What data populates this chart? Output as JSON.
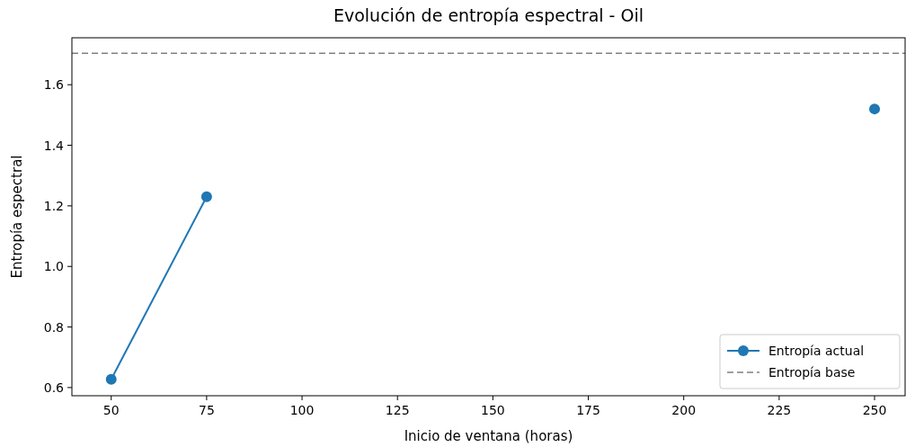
{
  "chart_data": {
    "type": "line",
    "title": "Evolución de entropía espectral - Oil",
    "xlabel": "Inicio de ventana (horas)",
    "ylabel": "Entropía espectral",
    "x": [
      50,
      75,
      100,
      125,
      150,
      175,
      200,
      225,
      250
    ],
    "series": [
      {
        "name": "Entropía actual",
        "color": "#1f77b4",
        "values": [
          0.627,
          1.23,
          null,
          null,
          null,
          null,
          null,
          null,
          1.52
        ]
      }
    ],
    "ref_lines": [
      {
        "axis": "y",
        "value": 1.704,
        "label": "Entropía base",
        "color": "#808080",
        "line_style": "dashed"
      }
    ],
    "xlim": [
      39.7,
      258
    ],
    "xticks": [
      50,
      75,
      100,
      125,
      150,
      175,
      200,
      225,
      250
    ],
    "ylim": [
      0.573,
      1.755
    ],
    "yticks": [
      0.6,
      0.8,
      {
        "value": 1,
        "label": "1.0"
      },
      1.2,
      1.4,
      1.6
    ],
    "marker": "circle",
    "line_style": "solid",
    "legend": "bottom right",
    "grid": false
  }
}
